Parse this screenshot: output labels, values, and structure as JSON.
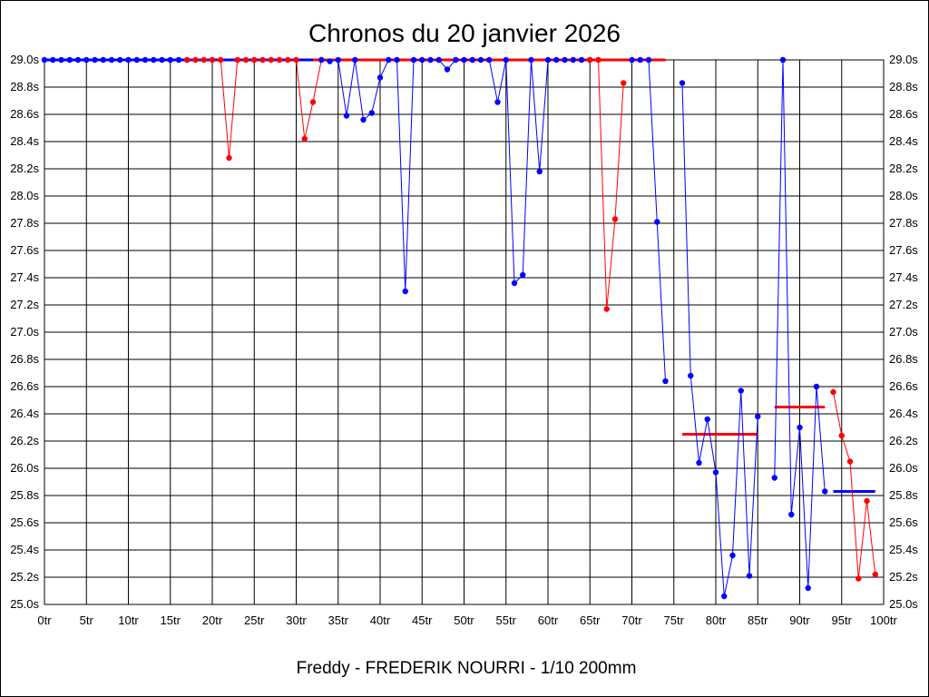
{
  "chart_data": {
    "type": "line",
    "title": "Chronos du 20 janvier 2026",
    "subtitle": "Freddy - FREDERIK NOURRI - 1/10 200mm",
    "xlim": [
      0,
      100
    ],
    "ylim": [
      25.0,
      29.0
    ],
    "x_ticks": [
      {
        "value": 0,
        "label": "0tr"
      },
      {
        "value": 5,
        "label": "5tr"
      },
      {
        "value": 10,
        "label": "10tr"
      },
      {
        "value": 15,
        "label": "15tr"
      },
      {
        "value": 20,
        "label": "20tr"
      },
      {
        "value": 25,
        "label": "25tr"
      },
      {
        "value": 30,
        "label": "30tr"
      },
      {
        "value": 35,
        "label": "35tr"
      },
      {
        "value": 40,
        "label": "40tr"
      },
      {
        "value": 45,
        "label": "45tr"
      },
      {
        "value": 50,
        "label": "50tr"
      },
      {
        "value": 55,
        "label": "55tr"
      },
      {
        "value": 60,
        "label": "60tr"
      },
      {
        "value": 65,
        "label": "65tr"
      },
      {
        "value": 70,
        "label": "70tr"
      },
      {
        "value": 75,
        "label": "75tr"
      },
      {
        "value": 80,
        "label": "80tr"
      },
      {
        "value": 85,
        "label": "85tr"
      },
      {
        "value": 90,
        "label": "90tr"
      },
      {
        "value": 95,
        "label": "95tr"
      },
      {
        "value": 100,
        "label": "100tr"
      }
    ],
    "y_ticks": [
      {
        "value": 29.0,
        "label": "29.0s"
      },
      {
        "value": 28.8,
        "label": "28.8s"
      },
      {
        "value": 28.6,
        "label": "28.6s"
      },
      {
        "value": 28.4,
        "label": "28.4s"
      },
      {
        "value": 28.2,
        "label": "28.2s"
      },
      {
        "value": 28.0,
        "label": "28.0s"
      },
      {
        "value": 27.8,
        "label": "27.8s"
      },
      {
        "value": 27.6,
        "label": "27.6s"
      },
      {
        "value": 27.4,
        "label": "27.4s"
      },
      {
        "value": 27.2,
        "label": "27.2s"
      },
      {
        "value": 27.0,
        "label": "27.0s"
      },
      {
        "value": 26.8,
        "label": "26.8s"
      },
      {
        "value": 26.6,
        "label": "26.6s"
      },
      {
        "value": 26.4,
        "label": "26.4s"
      },
      {
        "value": 26.2,
        "label": "26.2s"
      },
      {
        "value": 26.0,
        "label": "26.0s"
      },
      {
        "value": 25.8,
        "label": "25.8s"
      },
      {
        "value": 25.6,
        "label": "25.6s"
      },
      {
        "value": 25.4,
        "label": "25.4s"
      },
      {
        "value": 25.2,
        "label": "25.2s"
      },
      {
        "value": 25.0,
        "label": "25.0s"
      }
    ],
    "grid": true,
    "colors": {
      "red": "#ff0000",
      "blue": "#0000ff"
    },
    "series": [
      {
        "color": "#0000ff",
        "points": [
          [
            0,
            29.0
          ],
          [
            1,
            29.0
          ],
          [
            2,
            29.0
          ],
          [
            3,
            29.0
          ],
          [
            4,
            29.0
          ],
          [
            5,
            29.0
          ],
          [
            6,
            29.0
          ],
          [
            7,
            29.0
          ],
          [
            8,
            29.0
          ],
          [
            9,
            29.0
          ],
          [
            10,
            29.0
          ],
          [
            11,
            29.0
          ],
          [
            12,
            29.0
          ],
          [
            13,
            29.0
          ],
          [
            14,
            29.0
          ],
          [
            15,
            29.0
          ],
          [
            16,
            29.0
          ],
          [
            17,
            29.0
          ]
        ]
      },
      {
        "color": "#ff0000",
        "points": [
          [
            17,
            29.0
          ],
          [
            18,
            29.0
          ],
          [
            19,
            29.0
          ],
          [
            20,
            29.0
          ],
          [
            21,
            29.0
          ],
          [
            22,
            28.28
          ],
          [
            23,
            29.0
          ],
          [
            24,
            29.0
          ],
          [
            25,
            29.0
          ],
          [
            26,
            29.0
          ],
          [
            27,
            29.0
          ],
          [
            28,
            29.0
          ],
          [
            29,
            29.0
          ],
          [
            30,
            29.0
          ],
          [
            31,
            28.42
          ],
          [
            32,
            28.69
          ],
          [
            33,
            29.0
          ]
        ]
      },
      {
        "color": "#0000ff",
        "points": [
          [
            33,
            29.0
          ],
          [
            34,
            28.99
          ],
          [
            35,
            29.0
          ],
          [
            36,
            28.59
          ],
          [
            37,
            29.0
          ],
          [
            38,
            28.56
          ],
          [
            39,
            28.61
          ],
          [
            40,
            28.87
          ],
          [
            41,
            29.0
          ],
          [
            42,
            29.0
          ],
          [
            43,
            27.3
          ],
          [
            44,
            29.0
          ],
          [
            45,
            29.0
          ],
          [
            46,
            29.0
          ],
          [
            47,
            29.0
          ],
          [
            48,
            28.93
          ],
          [
            49,
            29.0
          ],
          [
            50,
            29.0
          ],
          [
            51,
            29.0
          ],
          [
            52,
            29.0
          ],
          [
            53,
            29.0
          ],
          [
            54,
            28.69
          ],
          [
            55,
            29.0
          ],
          [
            56,
            27.36
          ],
          [
            57,
            27.42
          ],
          [
            58,
            29.0
          ],
          [
            59,
            28.18
          ],
          [
            60,
            29.0
          ],
          [
            61,
            29.0
          ],
          [
            62,
            29.0
          ],
          [
            63,
            29.0
          ],
          [
            64,
            29.0
          ],
          [
            65,
            29.0
          ]
        ]
      },
      {
        "color": "#ff0000",
        "points": [
          [
            65,
            29.0
          ],
          [
            66,
            29.0
          ],
          [
            67,
            27.17
          ],
          [
            68,
            27.83
          ],
          [
            69,
            28.83
          ]
        ]
      },
      {
        "color": "#0000ff",
        "points": [
          [
            70,
            29.0
          ],
          [
            71,
            29.0
          ],
          [
            72,
            29.0
          ],
          [
            73,
            27.81
          ],
          [
            74,
            26.64
          ]
        ]
      },
      {
        "color": "#0000ff",
        "points": [
          [
            76,
            28.83
          ],
          [
            77,
            26.68
          ],
          [
            78,
            26.04
          ],
          [
            79,
            26.36
          ],
          [
            80,
            25.97
          ],
          [
            81,
            25.06
          ],
          [
            82,
            25.36
          ],
          [
            83,
            26.57
          ],
          [
            84,
            25.21
          ],
          [
            85,
            26.38
          ]
        ]
      },
      {
        "color": "#0000ff",
        "points": [
          [
            87,
            25.93
          ],
          [
            88,
            29.0
          ],
          [
            89,
            25.66
          ],
          [
            90,
            26.3
          ],
          [
            91,
            25.12
          ],
          [
            92,
            26.6
          ],
          [
            93,
            25.83
          ]
        ]
      },
      {
        "color": "#ff0000",
        "points": [
          [
            94,
            26.56
          ],
          [
            95,
            26.24
          ],
          [
            96,
            26.05
          ],
          [
            97,
            25.19
          ],
          [
            98,
            25.76
          ],
          [
            99,
            25.22
          ]
        ]
      }
    ],
    "averages": [
      {
        "color": "#0000ff",
        "x_start": 0,
        "x_end": 32,
        "y": 29.0
      },
      {
        "color": "#ff0000",
        "x_start": 32,
        "x_end": 74,
        "y": 29.0
      },
      {
        "color": "#ff0000",
        "x_start": 76,
        "x_end": 85,
        "y": 26.25
      },
      {
        "color": "#ff0000",
        "x_start": 87,
        "x_end": 93,
        "y": 26.45
      },
      {
        "color": "#0000ff",
        "x_start": 94,
        "x_end": 99,
        "y": 25.83
      }
    ]
  }
}
